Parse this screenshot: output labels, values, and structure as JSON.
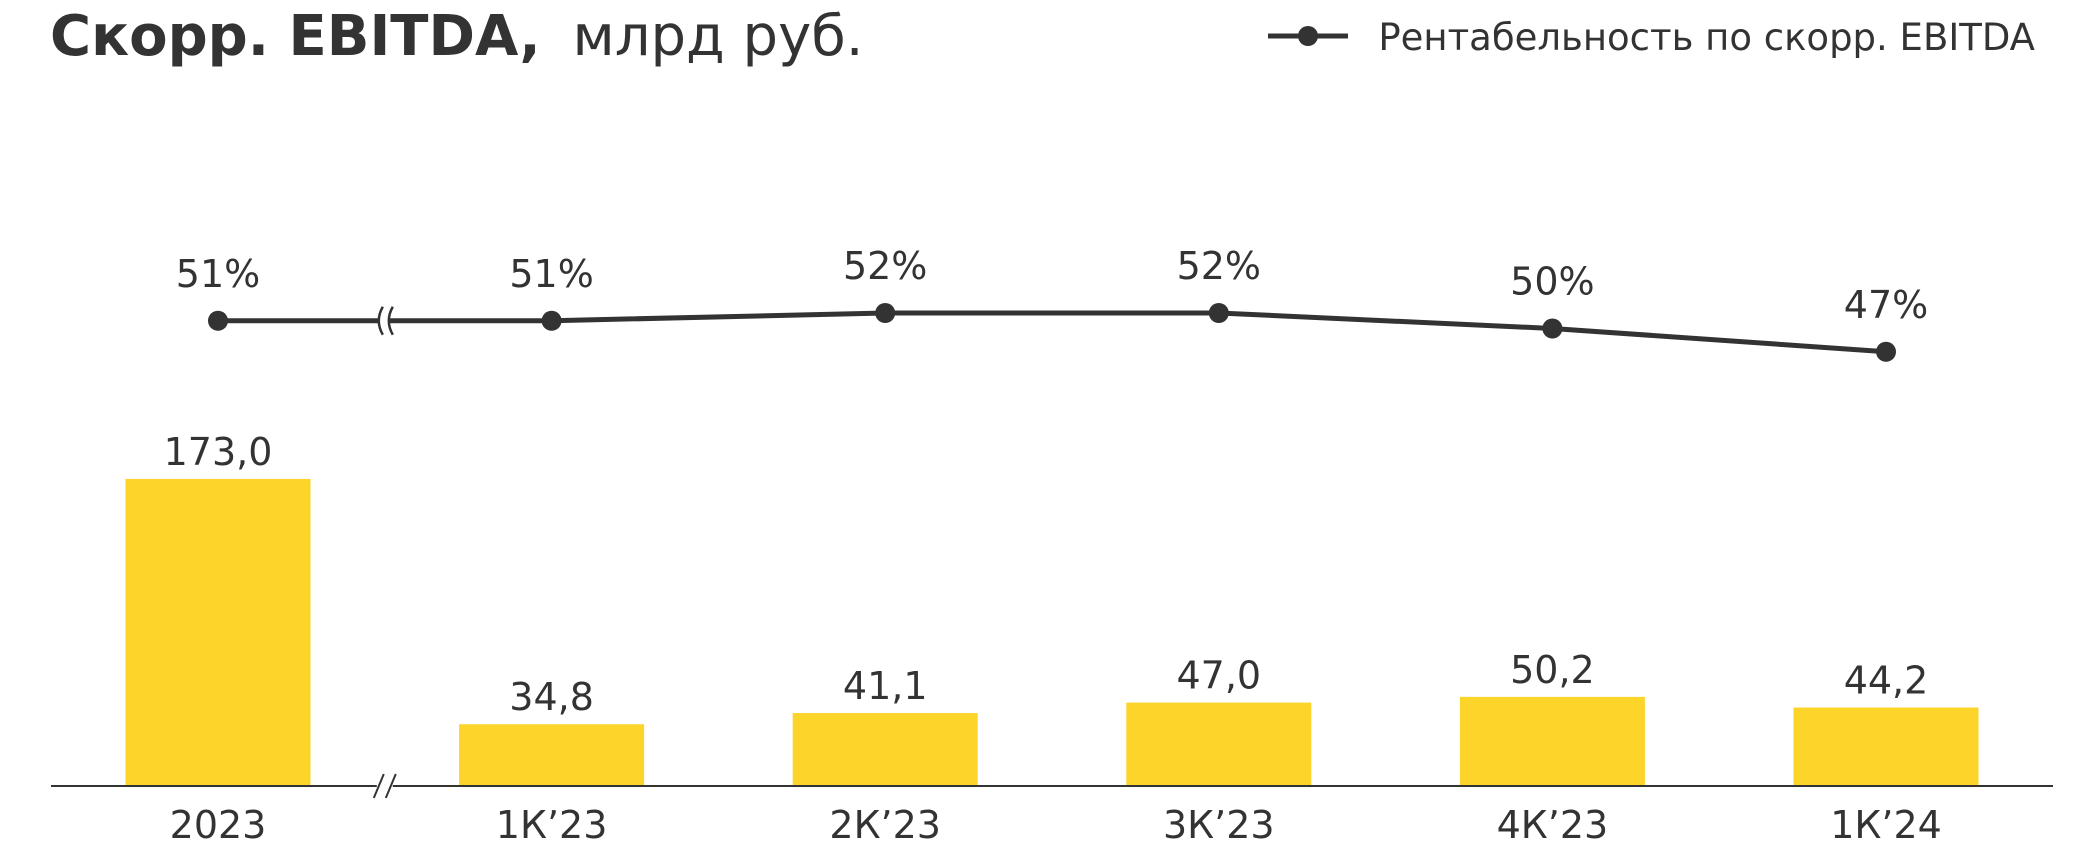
{
  "chart_data": {
    "type": "bar-line",
    "title": "Скорр. EBITDA,",
    "title_unit": "млрд руб.",
    "categories": [
      "2023",
      "1К’23",
      "2К’23",
      "3К’23",
      "4К’23",
      "1К’24"
    ],
    "series": [
      {
        "name": "Скорр. EBITDA",
        "type": "bar",
        "color": "#fdd42a",
        "values": [
          173.0,
          34.8,
          41.1,
          47.0,
          50.2,
          44.2
        ],
        "value_labels": [
          "173,0",
          "34,8",
          "41,1",
          "47,0",
          "50,2",
          "44,2"
        ]
      },
      {
        "name": "Рентабельность по скорр. EBITDA",
        "type": "line",
        "axis": "y2",
        "color": "#333333",
        "values": [
          51,
          51,
          52,
          52,
          50,
          47
        ],
        "value_labels": [
          "51%",
          "51%",
          "52%",
          "52%",
          "50%",
          "47%"
        ]
      }
    ],
    "ylim": [
      0,
      200
    ],
    "y2lim": [
      40,
      60
    ],
    "legend": "top-right"
  }
}
